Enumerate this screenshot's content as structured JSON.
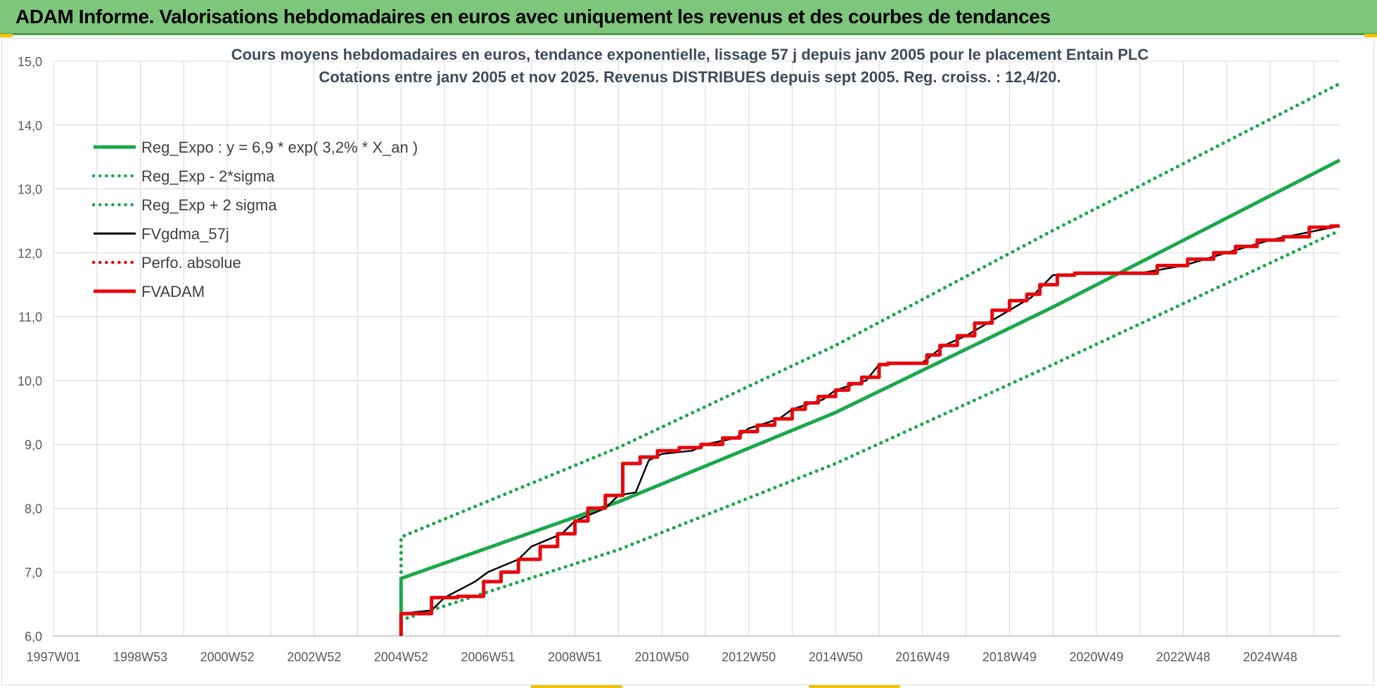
{
  "banner": {
    "title": "ADAM Informe. Valorisations hebdomadaires en euros avec uniquement les revenus et des courbes de tendances"
  },
  "colors": {
    "banner_bg": "#7dc67b",
    "trend_green": "#1aa84a",
    "fvadam_red": "#e8080d",
    "fvgdma_black": "#000000",
    "perfo_red": "#e8080d",
    "grid": "#d9d9d9"
  },
  "chart_data": {
    "type": "line",
    "title_line1": "Cours moyens hebdomadaires en euros, tendance exponentielle, lissage 57 j depuis janv 2005 pour le placement Entain PLC",
    "title_line2": "Cotations entre janv 2005 et nov 2025. Revenus DISTRIBUES depuis sept 2005. Reg. croiss. : 12,4/20.",
    "xlabel": "",
    "ylabel": "",
    "x_range": [
      1997.0,
      2026.6
    ],
    "ylim": [
      6.0,
      15.0
    ],
    "y_ticks": [
      "6,0",
      "7,0",
      "8,0",
      "9,0",
      "10,0",
      "11,0",
      "12,0",
      "13,0",
      "14,0",
      "15,0"
    ],
    "x_ticks": [
      {
        "label": "1997W01",
        "x": 1997.0
      },
      {
        "label": "1998W53",
        "x": 1999.0
      },
      {
        "label": "2000W52",
        "x": 2001.0
      },
      {
        "label": "2002W52",
        "x": 2003.0
      },
      {
        "label": "2004W52",
        "x": 2005.0
      },
      {
        "label": "2006W51",
        "x": 2007.0
      },
      {
        "label": "2008W51",
        "x": 2009.0
      },
      {
        "label": "2010W50",
        "x": 2011.0
      },
      {
        "label": "2012W50",
        "x": 2013.0
      },
      {
        "label": "2014W50",
        "x": 2015.0
      },
      {
        "label": "2016W49",
        "x": 2017.0
      },
      {
        "label": "2018W49",
        "x": 2019.0
      },
      {
        "label": "2020W49",
        "x": 2021.0
      },
      {
        "label": "2022W48",
        "x": 2023.0
      },
      {
        "label": "2024W48",
        "x": 2025.0
      }
    ],
    "grid": true,
    "legend_position": "top-left",
    "series": [
      {
        "name": "Reg_Expo : y = 6,9 * exp( 3,2% *  X_an )",
        "style": "solid-thick",
        "color": "#1aa84a",
        "x": [
          2005.0,
          2005.0,
          2010.0,
          2015.0,
          2020.0,
          2026.6
        ],
        "y": [
          6.0,
          6.9,
          8.1,
          9.5,
          11.15,
          13.45
        ]
      },
      {
        "name": "Reg_Exp - 2*sigma",
        "style": "dotted",
        "color": "#1aa84a",
        "x": [
          2005.0,
          2010.0,
          2015.0,
          2020.0,
          2026.6
        ],
        "y": [
          6.25,
          7.35,
          8.7,
          10.25,
          12.35
        ]
      },
      {
        "name": "Reg_Exp + 2 sigma",
        "style": "dotted",
        "color": "#1aa84a",
        "x": [
          2005.0,
          2005.0,
          2010.0,
          2015.0,
          2020.0,
          2026.6
        ],
        "y": [
          6.9,
          7.55,
          8.95,
          10.55,
          12.35,
          14.65
        ]
      },
      {
        "name": "FVgdma_57j",
        "style": "solid-thin",
        "color": "#000000",
        "x": [
          2005.0,
          2005.7,
          2006.0,
          2006.7,
          2007.0,
          2007.7,
          2008.0,
          2008.7,
          2009.0,
          2009.7,
          2010.0,
          2010.4,
          2010.7,
          2011.0,
          2011.7,
          2012.0,
          2012.7,
          2013.0,
          2013.7,
          2014.0,
          2014.7,
          2015.0,
          2015.7,
          2016.0,
          2017.0,
          2017.5,
          2018.0,
          2018.5,
          2019.0,
          2019.5,
          2020.0,
          2021.0,
          2022.0,
          2023.0,
          2024.0,
          2025.0,
          2026.6
        ],
        "y": [
          6.35,
          6.4,
          6.6,
          6.85,
          7.0,
          7.2,
          7.4,
          7.6,
          7.8,
          8.0,
          8.2,
          8.25,
          8.75,
          8.85,
          8.9,
          9.0,
          9.1,
          9.25,
          9.4,
          9.55,
          9.7,
          9.85,
          10.0,
          10.25,
          10.28,
          10.55,
          10.7,
          10.9,
          11.1,
          11.3,
          11.65,
          11.68,
          11.68,
          11.8,
          12.0,
          12.2,
          12.42
        ]
      },
      {
        "name": "Perfo. absolue",
        "style": "dotted",
        "color": "#e8080d",
        "x": [],
        "y": []
      },
      {
        "name": "FVADAM",
        "style": "solid-thick",
        "color": "#e8080d",
        "steps": true,
        "x_start": 2005.0,
        "x_end": 2026.6,
        "y_start": 6.0,
        "step_x": [
          2005.0,
          2005.7,
          2006.3,
          2006.9,
          2007.3,
          2007.7,
          2008.2,
          2008.6,
          2009.0,
          2009.3,
          2009.7,
          2010.1,
          2010.5,
          2010.9,
          2011.4,
          2011.9,
          2012.4,
          2012.8,
          2013.2,
          2013.6,
          2014.0,
          2014.3,
          2014.6,
          2015.0,
          2015.3,
          2015.6,
          2016.0,
          2016.2,
          2017.1,
          2017.4,
          2017.8,
          2018.2,
          2018.6,
          2019.0,
          2019.4,
          2019.7,
          2020.1,
          2020.5,
          2021.6,
          2022.4,
          2023.1,
          2023.7,
          2024.2,
          2024.7,
          2025.3,
          2025.9,
          2026.4
        ],
        "step_y": [
          6.35,
          6.6,
          6.62,
          6.85,
          7.0,
          7.2,
          7.4,
          7.6,
          7.8,
          8.0,
          8.2,
          8.7,
          8.8,
          8.9,
          8.95,
          9.0,
          9.1,
          9.2,
          9.3,
          9.4,
          9.55,
          9.65,
          9.75,
          9.85,
          9.95,
          10.05,
          10.25,
          10.27,
          10.4,
          10.55,
          10.7,
          10.9,
          11.1,
          11.25,
          11.35,
          11.5,
          11.65,
          11.68,
          11.68,
          11.8,
          11.9,
          12.0,
          12.1,
          12.2,
          12.25,
          12.4,
          12.42
        ]
      }
    ]
  }
}
